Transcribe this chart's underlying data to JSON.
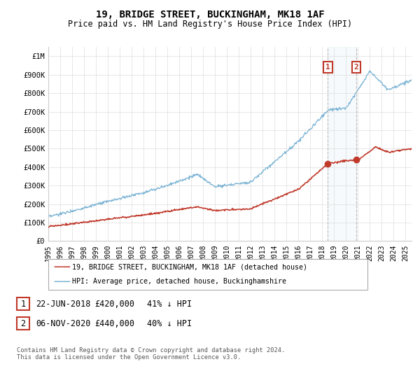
{
  "title": "19, BRIDGE STREET, BUCKINGHAM, MK18 1AF",
  "subtitle": "Price paid vs. HM Land Registry's House Price Index (HPI)",
  "ylim": [
    0,
    1050000
  ],
  "yticks": [
    0,
    100000,
    200000,
    300000,
    400000,
    500000,
    600000,
    700000,
    800000,
    900000,
    1000000
  ],
  "ytick_labels": [
    "£0",
    "£100K",
    "£200K",
    "£300K",
    "£400K",
    "£500K",
    "£600K",
    "£700K",
    "£800K",
    "£900K",
    "£1M"
  ],
  "hpi_color": "#7ab3d4",
  "price_color": "#c0392b",
  "background_color": "#ffffff",
  "grid_color": "#dddddd",
  "legend_label_red": "19, BRIDGE STREET, BUCKINGHAM, MK18 1AF (detached house)",
  "legend_label_blue": "HPI: Average price, detached house, Buckinghamshire",
  "table_row1": [
    "1",
    "22-JUN-2018",
    "£420,000",
    "41% ↓ HPI"
  ],
  "table_row2": [
    "2",
    "06-NOV-2020",
    "£440,000",
    "40% ↓ HPI"
  ],
  "footer": "Contains HM Land Registry data © Crown copyright and database right 2024.\nThis data is licensed under the Open Government Licence v3.0.",
  "sale1_date": 2018.47,
  "sale1_price": 420000,
  "sale2_date": 2020.84,
  "sale2_price": 440000,
  "xmin": 1995.0,
  "xmax": 2025.5
}
